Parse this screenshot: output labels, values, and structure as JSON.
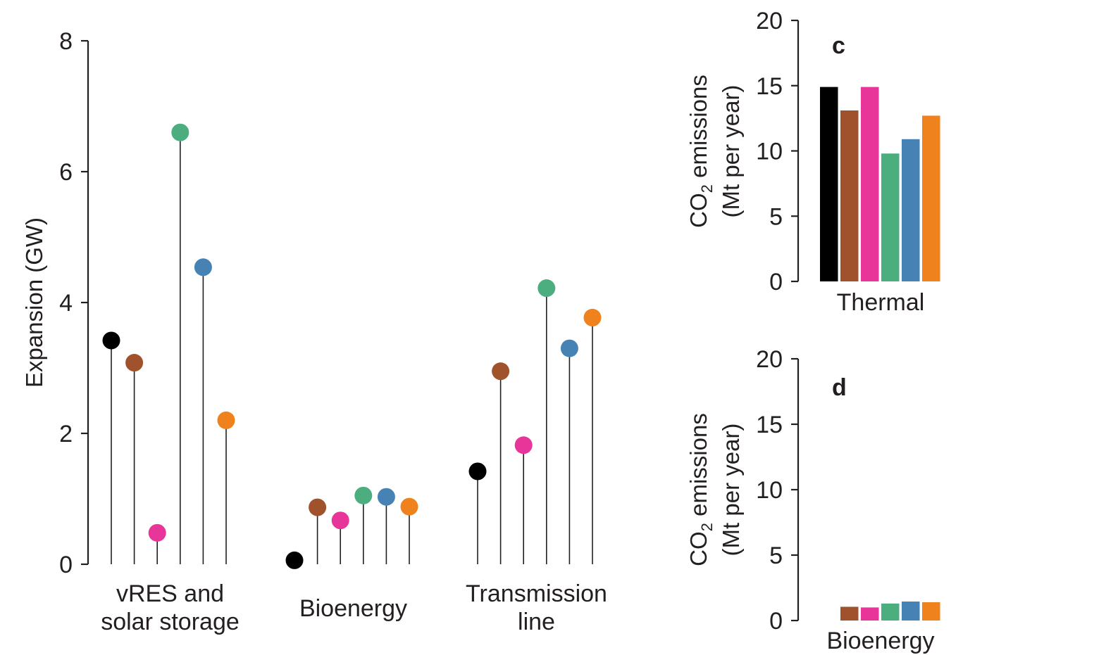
{
  "chart_data": [
    {
      "type": "lollipop",
      "ylabel": "Expansion (GW)",
      "ylim": [
        0,
        8
      ],
      "yticks": [
        0,
        2,
        4,
        6,
        8
      ],
      "categories": [
        {
          "name": "vres",
          "lines": [
            "vRES and",
            "solar storage"
          ]
        },
        {
          "name": "bioenergy",
          "lines": [
            "Bioenergy"
          ]
        },
        {
          "name": "transmission",
          "lines": [
            "Transmission",
            "line"
          ]
        }
      ],
      "colors": [
        "#000000",
        "#a0522d",
        "#e8359a",
        "#4cae7f",
        "#4682b4",
        "#f0821e"
      ],
      "values": [
        [
          3.42,
          3.08,
          0.48,
          6.6,
          4.54,
          2.2
        ],
        [
          0.06,
          0.87,
          0.67,
          1.05,
          1.03,
          0.88
        ],
        [
          1.42,
          2.95,
          1.82,
          4.22,
          3.3,
          3.77
        ]
      ]
    },
    {
      "type": "bar",
      "panel": "c",
      "ylabel_line1": "CO",
      "ylabel_sub": "2",
      "ylabel_rest": " emissions",
      "ylabel_line2": "(Mt per year)",
      "ylim": [
        0,
        20
      ],
      "yticks": [
        0,
        5,
        10,
        15,
        20
      ],
      "category": "Thermal",
      "colors": [
        "#000000",
        "#a0522d",
        "#e8359a",
        "#4cae7f",
        "#4682b4",
        "#f0821e"
      ],
      "values": [
        14.9,
        13.1,
        14.9,
        9.8,
        10.9,
        12.7
      ]
    },
    {
      "type": "bar",
      "panel": "d",
      "ylabel_line1": "CO",
      "ylabel_sub": "2",
      "ylabel_rest": " emissions",
      "ylabel_line2": "(Mt per year)",
      "ylim": [
        0,
        20
      ],
      "yticks": [
        0,
        5,
        10,
        15,
        20
      ],
      "category": "Bioenergy",
      "colors": [
        "#000000",
        "#a0522d",
        "#e8359a",
        "#4cae7f",
        "#4682b4",
        "#f0821e"
      ],
      "values": [
        0,
        1.05,
        1.0,
        1.3,
        1.45,
        1.4
      ]
    }
  ]
}
